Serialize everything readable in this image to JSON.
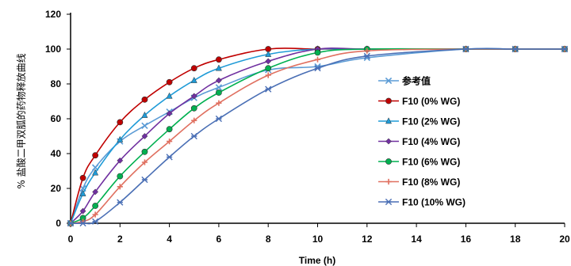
{
  "chart_data": {
    "type": "line",
    "xlabel": "Time (h)",
    "ylabel": "% 盐酸二甲双胍的药物释放曲线",
    "xlim": [
      0,
      20
    ],
    "ylim": [
      0,
      120
    ],
    "x_ticks": [
      "0",
      "2",
      "4",
      "6",
      "8",
      "10",
      "12",
      "14",
      "16",
      "18",
      "20"
    ],
    "y_ticks": [
      "0",
      "20",
      "40",
      "60",
      "80",
      "100",
      "120"
    ],
    "grid": false,
    "legend_position": "right",
    "series": [
      {
        "name": "参考值",
        "color": "#5b9bd5",
        "marker": "x",
        "points": [
          [
            0,
            0
          ],
          [
            0.5,
            20
          ],
          [
            1,
            32
          ],
          [
            2,
            47
          ],
          [
            3,
            56
          ],
          [
            4,
            64
          ],
          [
            5,
            72
          ],
          [
            6,
            78
          ],
          [
            8,
            88
          ],
          [
            10,
            90
          ],
          [
            12,
            95
          ],
          [
            16,
            100
          ],
          [
            18,
            100
          ],
          [
            20,
            100
          ]
        ]
      },
      {
        "name": "F10 (0% WG)",
        "color": "#c00000",
        "marker": "circle",
        "points": [
          [
            0,
            0
          ],
          [
            0.5,
            26
          ],
          [
            1,
            39
          ],
          [
            2,
            58
          ],
          [
            3,
            71
          ],
          [
            4,
            81
          ],
          [
            5,
            89
          ],
          [
            6,
            94
          ],
          [
            8,
            100
          ],
          [
            10,
            100
          ],
          [
            12,
            100
          ],
          [
            16,
            100
          ],
          [
            18,
            100
          ],
          [
            20,
            100
          ]
        ]
      },
      {
        "name": "F10 (2% WG)",
        "color": "#1f9bd7",
        "marker": "triangle",
        "points": [
          [
            0,
            0
          ],
          [
            0.5,
            17
          ],
          [
            1,
            29
          ],
          [
            2,
            48
          ],
          [
            3,
            62
          ],
          [
            4,
            73
          ],
          [
            5,
            82
          ],
          [
            6,
            89
          ],
          [
            8,
            97
          ],
          [
            10,
            100
          ],
          [
            12,
            100
          ],
          [
            16,
            100
          ],
          [
            18,
            100
          ],
          [
            20,
            100
          ]
        ]
      },
      {
        "name": "F10 (4% WG)",
        "color": "#7030a0",
        "marker": "diamond",
        "points": [
          [
            0,
            0
          ],
          [
            0.5,
            7
          ],
          [
            1,
            18
          ],
          [
            2,
            36
          ],
          [
            3,
            50
          ],
          [
            4,
            63
          ],
          [
            5,
            73
          ],
          [
            6,
            82
          ],
          [
            8,
            93
          ],
          [
            10,
            100
          ],
          [
            12,
            100
          ],
          [
            16,
            100
          ],
          [
            18,
            100
          ],
          [
            20,
            100
          ]
        ]
      },
      {
        "name": "F10 (6% WG)",
        "color": "#00b050",
        "marker": "circle",
        "points": [
          [
            0,
            0
          ],
          [
            0.5,
            3
          ],
          [
            1,
            10
          ],
          [
            2,
            27
          ],
          [
            3,
            41
          ],
          [
            4,
            54
          ],
          [
            5,
            66
          ],
          [
            6,
            75
          ],
          [
            8,
            89
          ],
          [
            10,
            98
          ],
          [
            12,
            100
          ],
          [
            16,
            100
          ],
          [
            18,
            100
          ],
          [
            20,
            100
          ]
        ]
      },
      {
        "name": "F10 (8% WG)",
        "color": "#e07060",
        "marker": "plus",
        "points": [
          [
            0,
            0
          ],
          [
            0.5,
            1
          ],
          [
            1,
            5
          ],
          [
            2,
            21
          ],
          [
            3,
            35
          ],
          [
            4,
            47
          ],
          [
            5,
            59
          ],
          [
            6,
            69
          ],
          [
            8,
            85
          ],
          [
            10,
            94
          ],
          [
            12,
            99
          ],
          [
            16,
            100
          ],
          [
            18,
            100
          ],
          [
            20,
            100
          ]
        ]
      },
      {
        "name": "F10 (10% WG)",
        "color": "#4a6fb5",
        "marker": "star",
        "points": [
          [
            0,
            0
          ],
          [
            0.5,
            0
          ],
          [
            1,
            1
          ],
          [
            2,
            12
          ],
          [
            3,
            25
          ],
          [
            4,
            38
          ],
          [
            5,
            50
          ],
          [
            6,
            60
          ],
          [
            8,
            77
          ],
          [
            10,
            89
          ],
          [
            12,
            96
          ],
          [
            16,
            100
          ],
          [
            18,
            100
          ],
          [
            20,
            100
          ]
        ]
      }
    ]
  }
}
